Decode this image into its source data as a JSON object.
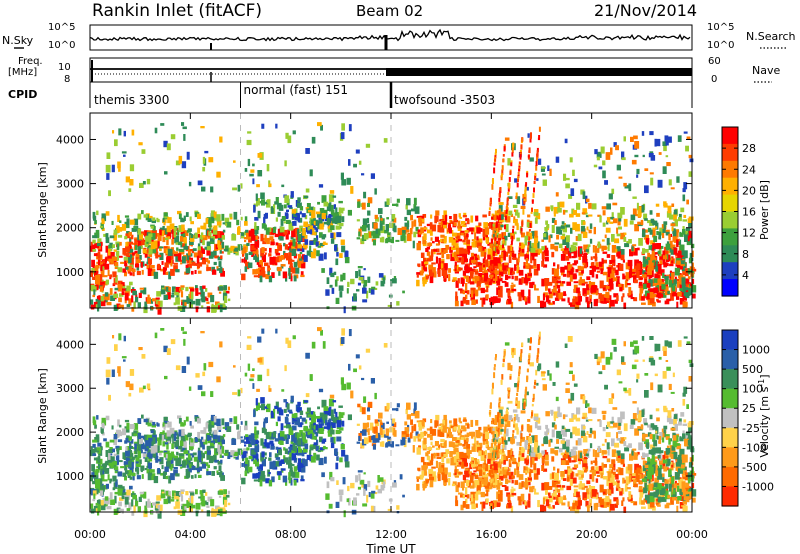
{
  "header": {
    "station": "Rankin Inlet (fitACF)",
    "beam": "Beam 02",
    "date": "21/Nov/2014"
  },
  "noise_panel": {
    "left_label": "N.Sky",
    "right_label": "N.Search",
    "tick_top": "10^5",
    "tick_bottom": "10^0",
    "right_tick_top": "10^5",
    "right_tick_bottom": "10^0"
  },
  "freq_panel": {
    "left_label_1": "Freq.",
    "left_label_2": "[MHz]",
    "tick_low": "8",
    "tick_high": "10",
    "right_label": "Nave",
    "right_tick_top": "60",
    "right_tick_bottom": "0"
  },
  "cpid_panel": {
    "label": "CPID",
    "segments": [
      {
        "name": "themis 3300",
        "start_hour": 0,
        "end_hour": 6
      },
      {
        "name": "normal (fast) 151",
        "start_hour": 6,
        "end_hour": 12
      },
      {
        "name": "twofsound -3503",
        "start_hour": 12,
        "end_hour": 24
      }
    ]
  },
  "power_colorbar": {
    "title": "Power [dB]",
    "ticks": [
      "28",
      "24",
      "20",
      "16",
      "12",
      "8",
      "4"
    ],
    "colors": [
      "#ff0000",
      "#ff3c00",
      "#ff7a00",
      "#ffb000",
      "#e6d500",
      "#9acd32",
      "#3da03d",
      "#2e8b57",
      "#1e3fbf",
      "#0000ff"
    ]
  },
  "velocity_colorbar": {
    "title": "Velocity [m s^-1]",
    "ticks": [
      "1000",
      "500",
      "100",
      "25",
      "-25",
      "-100",
      "-500",
      "-1000"
    ],
    "colors": [
      "#1a3fbf",
      "#2a5fa8",
      "#3a8f5a",
      "#55bb30",
      "#c0c0c0",
      "#ffd24a",
      "#ff9a1a",
      "#ff6a00",
      "#ff2a00"
    ]
  },
  "chart_data": [
    {
      "type": "heatmap",
      "quantity": "Power",
      "xlabel": "",
      "ylabel": "Slant Range [km]",
      "xlim_hours": [
        0,
        24
      ],
      "ylim_km": [
        180,
        4600
      ],
      "y_ticks": [
        "1000",
        "2000",
        "3000",
        "4000"
      ],
      "vertical_dashes_hours": [
        6,
        12
      ],
      "value_range_db": [
        0,
        30
      ]
    },
    {
      "type": "heatmap",
      "quantity": "Velocity",
      "xlabel": "Time UT",
      "ylabel": "Slant Range [km]",
      "xlim_hours": [
        0,
        24
      ],
      "ylim_km": [
        180,
        4600
      ],
      "x_ticks": [
        "00:00",
        "04:00",
        "08:00",
        "12:00",
        "16:00",
        "20:00",
        "00:00"
      ],
      "y_ticks": [
        "1000",
        "2000",
        "3000",
        "4000"
      ],
      "vertical_dashes_hours": [
        6,
        12
      ],
      "value_range_ms": [
        -1000,
        1000
      ]
    }
  ]
}
